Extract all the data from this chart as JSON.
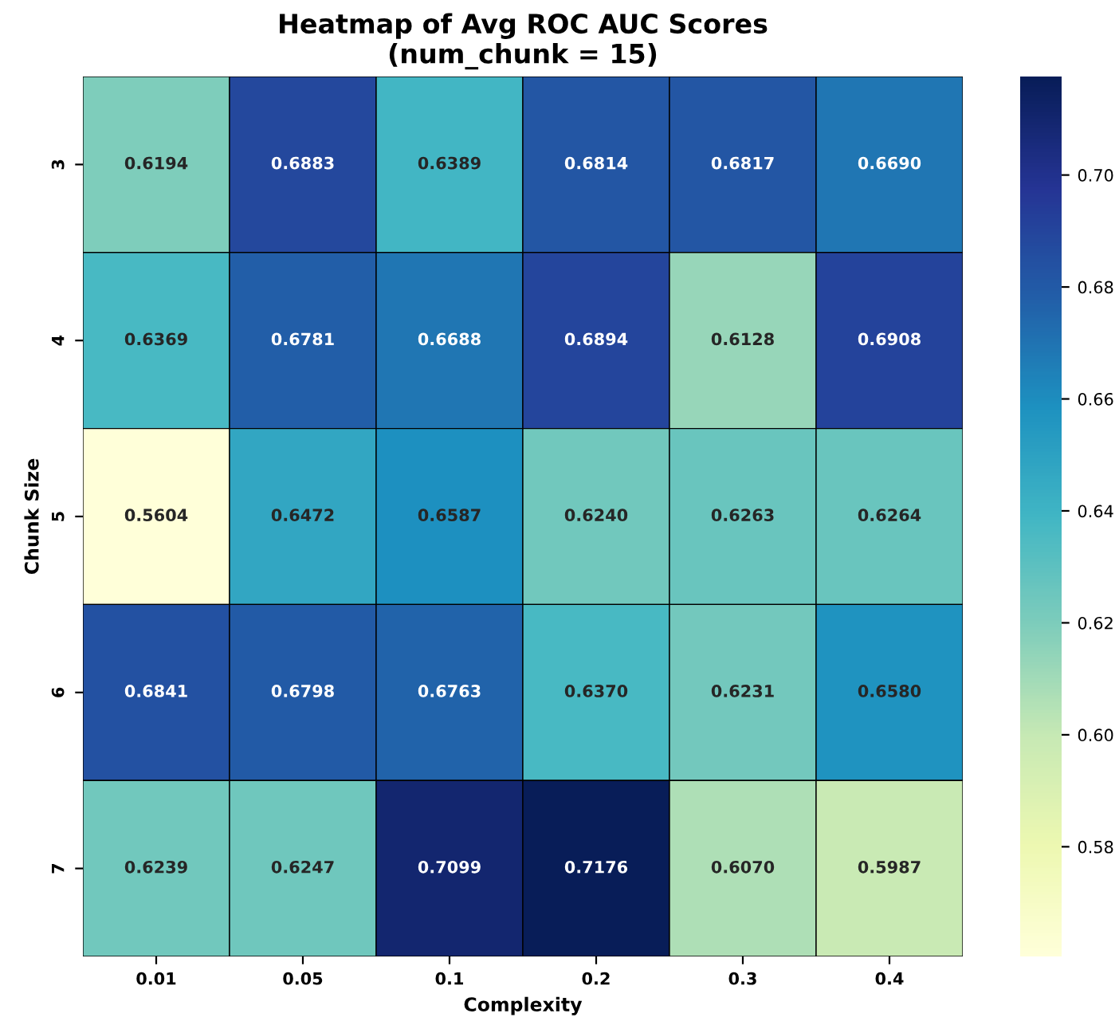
{
  "chart_data": {
    "type": "heatmap",
    "title": "Heatmap of Avg ROC AUC Scores\n(num_chunk = 15)",
    "xlabel": "Complexity",
    "ylabel": "Chunk Size",
    "categories": [
      "0.01",
      "0.05",
      "0.1",
      "0.2",
      "0.3",
      "0.4"
    ],
    "y_categories": [
      "3",
      "4",
      "5",
      "6",
      "7"
    ],
    "cells": [
      [
        0.6194,
        0.6883,
        0.6389,
        0.6814,
        0.6817,
        0.669
      ],
      [
        0.6369,
        0.6781,
        0.6688,
        0.6894,
        0.6128,
        0.6908
      ],
      [
        0.5604,
        0.6472,
        0.6587,
        0.624,
        0.6263,
        0.6264
      ],
      [
        0.6841,
        0.6798,
        0.6763,
        0.637,
        0.6231,
        0.658
      ],
      [
        0.6239,
        0.6247,
        0.7099,
        0.7176,
        0.607,
        0.5987
      ]
    ],
    "cell_labels": [
      [
        "0.6194",
        "0.6883",
        "0.6389",
        "0.6814",
        "0.6817",
        "0.6690"
      ],
      [
        "0.6369",
        "0.6781",
        "0.6688",
        "0.6894",
        "0.6128",
        "0.6908"
      ],
      [
        "0.5604",
        "0.6472",
        "0.6587",
        "0.6240",
        "0.6263",
        "0.6264"
      ],
      [
        "0.6841",
        "0.6798",
        "0.6763",
        "0.6370",
        "0.6231",
        "0.6580"
      ],
      [
        "0.6239",
        "0.6247",
        "0.7099",
        "0.7176",
        "0.6070",
        "0.5987"
      ]
    ],
    "clim": [
      0.5604,
      0.7176
    ],
    "cticks": [
      0.58,
      {
        "value": 0.6,
        "label": "0.60"
      },
      0.62,
      0.64,
      0.66,
      0.68,
      {
        "value": 0.7,
        "label": "0.70"
      }
    ],
    "data_labels": true
  }
}
